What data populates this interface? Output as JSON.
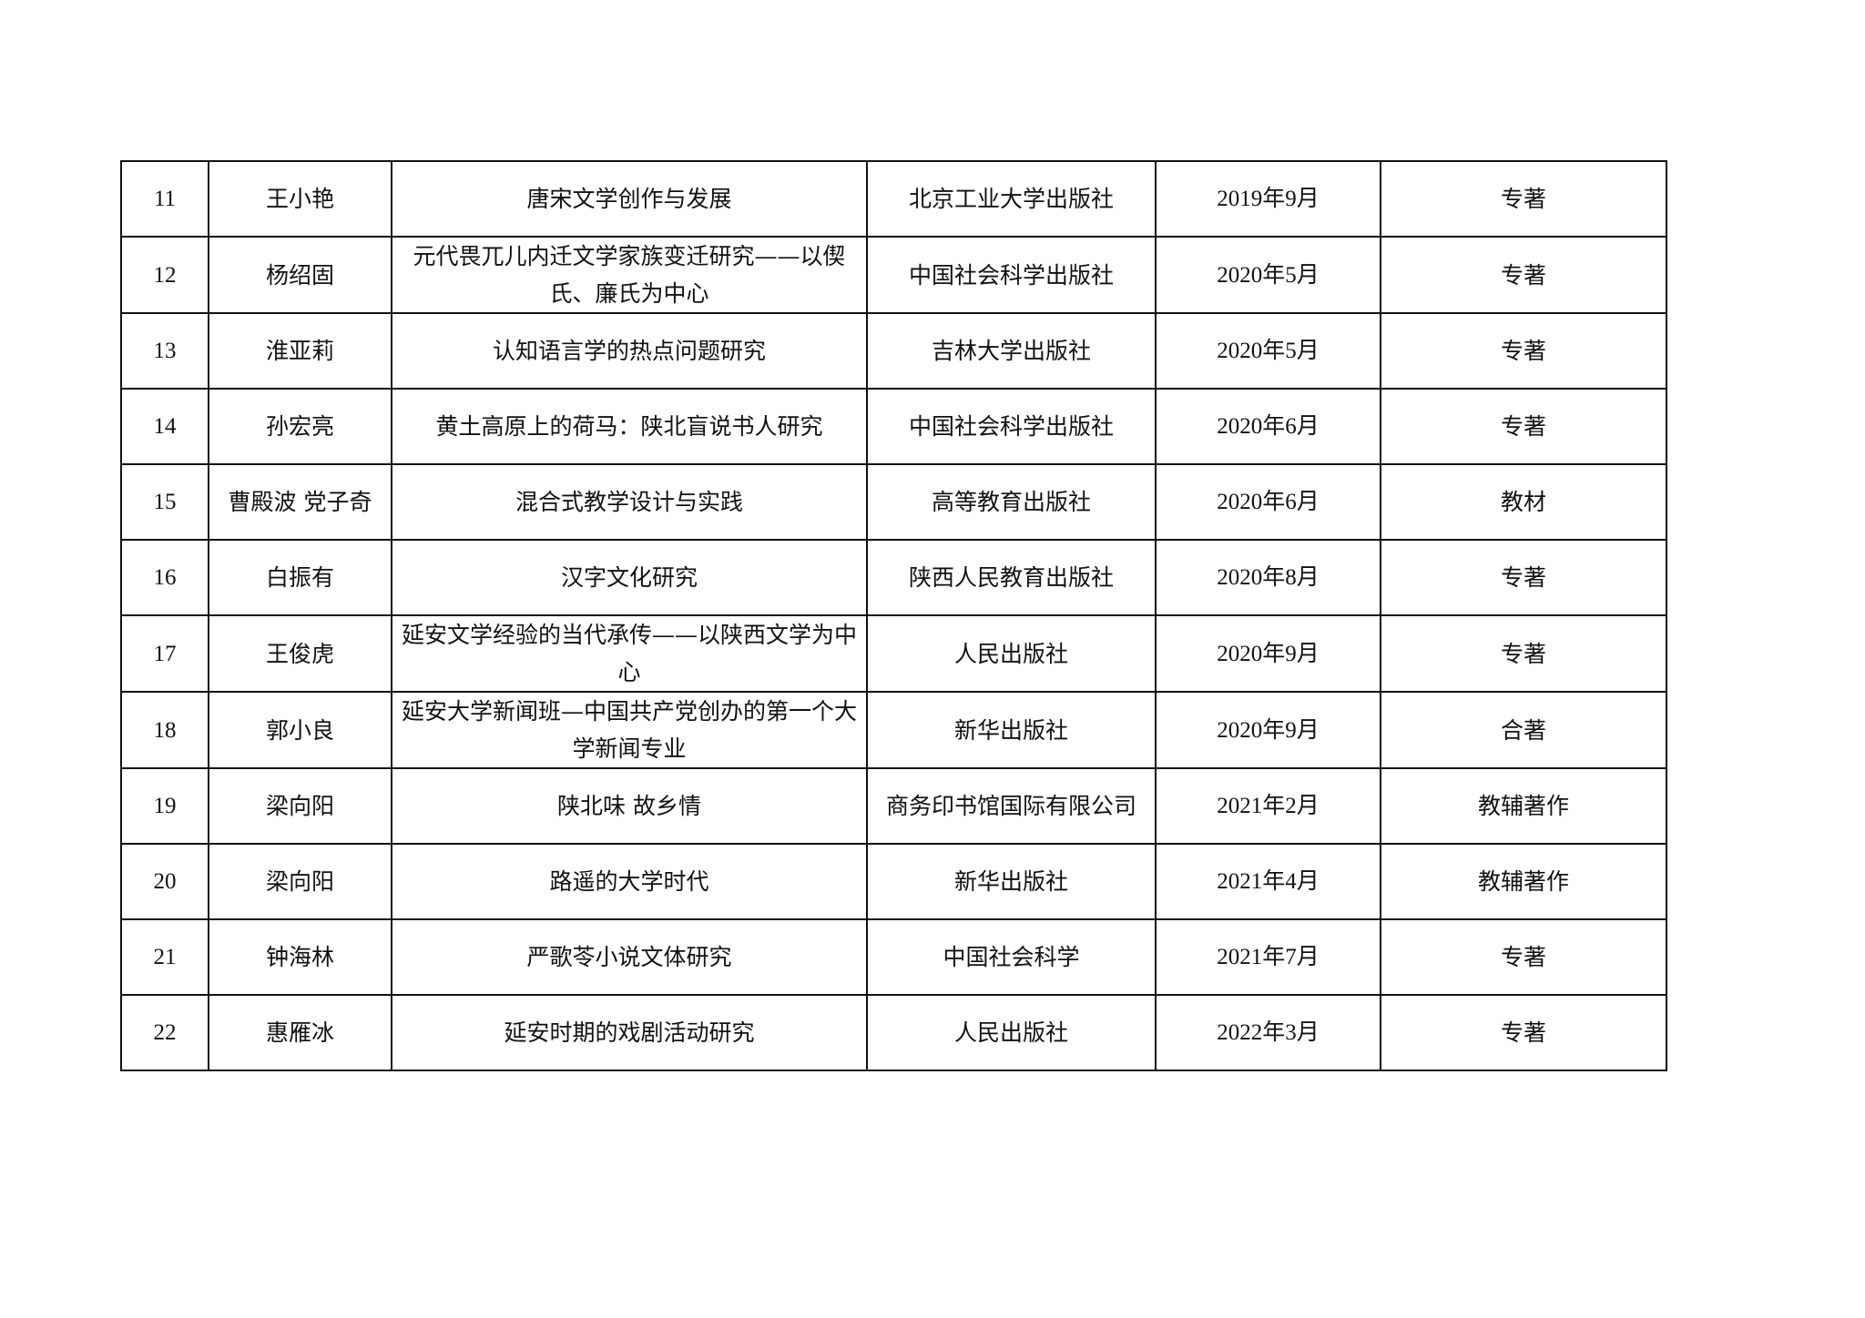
{
  "rows": [
    {
      "no": "11",
      "author": "王小艳",
      "title": "唐宋文学创作与发展",
      "publisher": "北京工业大学出版社",
      "date": "2019年9月",
      "type": "专著"
    },
    {
      "no": "12",
      "author": "杨绍固",
      "title": "元代畏兀儿内迁文学家族变迁研究——以偰氏、廉氏为中心",
      "publisher": "中国社会科学出版社",
      "date": "2020年5月",
      "type": "专著"
    },
    {
      "no": "13",
      "author": "淮亚莉",
      "title": "认知语言学的热点问题研究",
      "publisher": "吉林大学出版社",
      "date": "2020年5月",
      "type": "专著"
    },
    {
      "no": "14",
      "author": "孙宏亮",
      "title": "黄土高原上的荷马：陕北盲说书人研究",
      "publisher": "中国社会科学出版社",
      "date": "2020年6月",
      "type": "专著"
    },
    {
      "no": "15",
      "author": "曹殿波 党子奇",
      "title": "混合式教学设计与实践",
      "publisher": "高等教育出版社",
      "date": "2020年6月",
      "type": "教材"
    },
    {
      "no": "16",
      "author": "白振有",
      "title": "汉字文化研究",
      "publisher": "陕西人民教育出版社",
      "date": "2020年8月",
      "type": "专著"
    },
    {
      "no": "17",
      "author": "王俊虎",
      "title": "延安文学经验的当代承传——以陕西文学为中心",
      "publisher": "人民出版社",
      "date": "2020年9月",
      "type": "专著"
    },
    {
      "no": "18",
      "author": "郭小良",
      "title": "延安大学新闻班—中国共产党创办的第一个大学新闻专业",
      "publisher": "新华出版社",
      "date": "2020年9月",
      "type": "合著"
    },
    {
      "no": "19",
      "author": "梁向阳",
      "title": "陕北味 故乡情",
      "publisher": "商务印书馆国际有限公司",
      "date": "2021年2月",
      "type": "教辅著作"
    },
    {
      "no": "20",
      "author": "梁向阳",
      "title": "路遥的大学时代",
      "publisher": "新华出版社",
      "date": "2021年4月",
      "type": "教辅著作"
    },
    {
      "no": "21",
      "author": "钟海林",
      "title": "严歌苓小说文体研究",
      "publisher": "中国社会科学",
      "date": "2021年7月",
      "type": "专著"
    },
    {
      "no": "22",
      "author": "惠雁冰",
      "title": "延安时期的戏剧活动研究",
      "publisher": "人民出版社",
      "date": "2022年3月",
      "type": "专著"
    }
  ]
}
